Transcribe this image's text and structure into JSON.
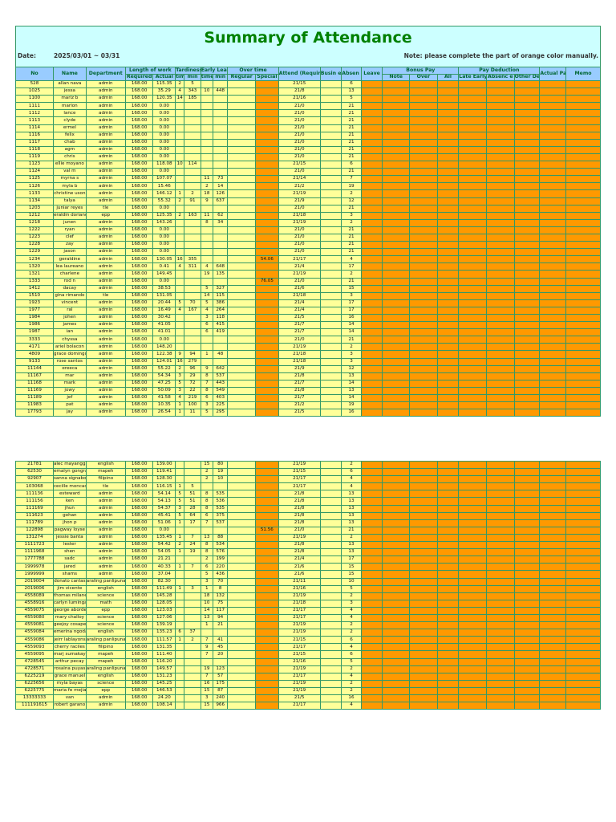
{
  "title": "Summary of Attendance",
  "date_label": "Date:",
  "date_value": "2025/03/01 ~ 03/31",
  "note": "Note: please complete the part of orange color manually.",
  "headers": {
    "no": "No",
    "name": "Name",
    "department": "Department",
    "length_of_work": "Length of work",
    "required": "Required",
    "actual": "Actual",
    "tardiness": "Tardiness",
    "tard_time": "time",
    "tard_min": "min",
    "early_leave": "Early Leave",
    "early_time": "time",
    "early_min": "min",
    "overtime": "Over time",
    "regular": "Regular",
    "special": "Special",
    "attend": "Attend (Required/ Actual)",
    "business_trip": "Busin ess Trip",
    "absence": "Absen ce",
    "leave": "Leave",
    "bonus_pay": "Bonus Pay",
    "bonus_note": "Note",
    "bonus_over": "Over",
    "bonus_all": "All",
    "pay_deduction": "Pay Deduction",
    "late_early": "Late Early Leave",
    "ded_absence": "Absenc e",
    "other_deduction": "Other Deducti on",
    "actual_pay": "Actual Pay",
    "memo": "Memo"
  },
  "table1_rows": [
    [
      "528",
      "allan nava",
      "admin",
      "168.00",
      "115.35",
      "2",
      "5",
      "",
      "",
      "",
      "",
      "21/15",
      "",
      "6"
    ],
    [
      "1025",
      "jessa",
      "admin",
      "168.00",
      "35.29",
      "4",
      "343",
      "10",
      "448",
      "",
      "",
      "21/8",
      "",
      "13"
    ],
    [
      "1100",
      "mariz b",
      "admin",
      "168.00",
      "120.35",
      "14",
      "185",
      "",
      "",
      "",
      "",
      "21/16",
      "",
      "5"
    ],
    [
      "1111",
      "marlon",
      "admin",
      "168.00",
      "0.00",
      "",
      "",
      "",
      "",
      "",
      "",
      "21/0",
      "",
      "21"
    ],
    [
      "1112",
      "lance",
      "admin",
      "168.00",
      "0.00",
      "",
      "",
      "",
      "",
      "",
      "",
      "21/0",
      "",
      "21"
    ],
    [
      "1113",
      "clyde",
      "admin",
      "168.00",
      "0.00",
      "",
      "",
      "",
      "",
      "",
      "",
      "21/0",
      "",
      "21"
    ],
    [
      "1114",
      "ermel",
      "admin",
      "168.00",
      "0.00",
      "",
      "",
      "",
      "",
      "",
      "",
      "21/0",
      "",
      "21"
    ],
    [
      "1116",
      "felix",
      "admin",
      "168.00",
      "0.00",
      "",
      "",
      "",
      "",
      "",
      "",
      "21/0",
      "",
      "21"
    ],
    [
      "1117",
      "chab",
      "admin",
      "168.00",
      "0.00",
      "",
      "",
      "",
      "",
      "",
      "",
      "21/0",
      "",
      "21"
    ],
    [
      "1118",
      "agm",
      "admin",
      "168.00",
      "0.00",
      "",
      "",
      "",
      "",
      "",
      "",
      "21/0",
      "",
      "21"
    ],
    [
      "1119",
      "chris",
      "admin",
      "168.00",
      "0.00",
      "",
      "",
      "",
      "",
      "",
      "",
      "21/0",
      "",
      "21"
    ],
    [
      "1123",
      "ellie moyano",
      "admin",
      "168.00",
      "118.08",
      "10",
      "114",
      "",
      "",
      "",
      "",
      "21/15",
      "",
      "6"
    ],
    [
      "1124",
      "val m",
      "admin",
      "168.00",
      "0.00",
      "",
      "",
      "",
      "",
      "",
      "",
      "21/0",
      "",
      "21"
    ],
    [
      "1125",
      "myrna s",
      "admin",
      "168.00",
      "107.07",
      "",
      "",
      "11",
      "73",
      "",
      "",
      "21/14",
      "",
      "7"
    ],
    [
      "1126",
      "myla b",
      "admin",
      "168.00",
      "15.46",
      "",
      "",
      "2",
      "14",
      "",
      "",
      "21/2",
      "",
      "19"
    ],
    [
      "1133",
      "christine uson",
      "admin",
      "168.00",
      "146.12",
      "1",
      "2",
      "18",
      "126",
      "",
      "",
      "21/19",
      "",
      "2"
    ],
    [
      "1134",
      "talya",
      "admin",
      "168.00",
      "55.32",
      "2",
      "91",
      "9",
      "637",
      "",
      "",
      "21/9",
      "",
      "12"
    ],
    [
      "1203",
      "juniar reyes",
      "tle",
      "168.00",
      "0.00",
      "",
      "",
      "",
      "",
      "",
      "",
      "21/0",
      "",
      "21"
    ],
    [
      "1212",
      "eraldin doriano",
      "epp",
      "168.00",
      "125.35",
      "2",
      "163",
      "11",
      "62",
      "",
      "",
      "21/18",
      "",
      "3"
    ],
    [
      "1218",
      "junen",
      "admin",
      "168.00",
      "143.26",
      "",
      "",
      "8",
      "34",
      "",
      "",
      "21/19",
      "",
      "2"
    ],
    [
      "1222",
      "ryan",
      "admin",
      "168.00",
      "0.00",
      "",
      "",
      "",
      "",
      "",
      "",
      "21/0",
      "",
      "21"
    ],
    [
      "1223",
      "clef",
      "admin",
      "168.00",
      "0.00",
      "",
      "",
      "",
      "",
      "",
      "",
      "21/0",
      "",
      "21"
    ],
    [
      "1228",
      "zay",
      "admin",
      "168.00",
      "0.00",
      "",
      "",
      "",
      "",
      "",
      "",
      "21/0",
      "",
      "21"
    ],
    [
      "1229",
      "jason",
      "admin",
      "168.00",
      "0.00",
      "",
      "",
      "",
      "",
      "",
      "",
      "21/0",
      "",
      "21"
    ],
    [
      "1234",
      "geraldine",
      "admin",
      "168.00",
      "130.05",
      "16",
      "355",
      "",
      "",
      "",
      "54.06",
      "21/17",
      "",
      "4"
    ],
    [
      "1320",
      "lea laureano",
      "admin",
      "168.00",
      "0.41",
      "4",
      "311",
      "4",
      "648",
      "",
      "",
      "21/4",
      "",
      "17"
    ],
    [
      "1321",
      "charlene",
      "admin",
      "168.00",
      "149.45",
      "",
      "",
      "19",
      "135",
      "",
      "",
      "21/19",
      "",
      "2"
    ],
    [
      "1333",
      "rod n",
      "admin",
      "168.00",
      "0.00",
      "",
      "",
      "",
      "",
      "",
      "76.05",
      "21/0",
      "",
      "21"
    ],
    [
      "1412",
      "dacay",
      "admin",
      "168.00",
      "38.53",
      "",
      "",
      "5",
      "327",
      "",
      "",
      "21/6",
      "",
      "15"
    ],
    [
      "1510",
      "gina rimando",
      "tle",
      "168.00",
      "131.05",
      "",
      "",
      "14",
      "115",
      "",
      "",
      "21/18",
      "",
      "3"
    ],
    [
      "1923",
      "vincent",
      "admin",
      "168.00",
      "20.44",
      "5",
      "70",
      "5",
      "386",
      "",
      "",
      "21/4",
      "",
      "17"
    ],
    [
      "1977",
      "ral",
      "admin",
      "168.00",
      "16.49",
      "4",
      "167",
      "4",
      "264",
      "",
      "",
      "21/4",
      "",
      "17"
    ],
    [
      "1984",
      "johen",
      "admin",
      "168.00",
      "30.42",
      "",
      "",
      "3",
      "118",
      "",
      "",
      "21/5",
      "",
      "16"
    ],
    [
      "1986",
      "james",
      "admin",
      "168.00",
      "41.05",
      "",
      "",
      "6",
      "415",
      "",
      "",
      "21/7",
      "",
      "14"
    ],
    [
      "1987",
      "ian",
      "admin",
      "168.00",
      "41.01",
      "",
      "",
      "6",
      "419",
      "",
      "",
      "21/7",
      "",
      "14"
    ],
    [
      "3333",
      "chyssa",
      "admin",
      "168.00",
      "0.00",
      "",
      "",
      "",
      "",
      "",
      "",
      "21/0",
      "",
      "21"
    ],
    [
      "4171",
      "ariel bolacon",
      "admin",
      "168.00",
      "148.20",
      "",
      "",
      "",
      "",
      "",
      "",
      "21/19",
      "",
      "2"
    ],
    [
      "4809",
      "grace domingo",
      "admin",
      "168.00",
      "122.38",
      "9",
      "94",
      "1",
      "48",
      "",
      "",
      "21/18",
      "",
      "3"
    ],
    [
      "9133",
      "rose santos",
      "admin",
      "168.00",
      "124.01",
      "16",
      "279",
      "",
      "",
      "",
      "",
      "21/18",
      "",
      "3"
    ],
    [
      "11144",
      "ereeca",
      "admin",
      "168.00",
      "55.22",
      "2",
      "96",
      "9",
      "642",
      "",
      "",
      "21/9",
      "",
      "12"
    ],
    [
      "11167",
      "mar",
      "admin",
      "168.00",
      "54.34",
      "3",
      "29",
      "8",
      "537",
      "",
      "",
      "21/8",
      "",
      "13"
    ],
    [
      "11168",
      "mark",
      "admin",
      "168.00",
      "47.25",
      "5",
      "72",
      "7",
      "443",
      "",
      "",
      "21/7",
      "",
      "14"
    ],
    [
      "11169",
      "jowy",
      "admin",
      "168.00",
      "50.09",
      "3",
      "22",
      "8",
      "549",
      "",
      "",
      "21/8",
      "",
      "13"
    ],
    [
      "11189",
      "jef",
      "admin",
      "168.00",
      "41.58",
      "4",
      "219",
      "6",
      "403",
      "",
      "",
      "21/7",
      "",
      "14"
    ],
    [
      "11983",
      "pat",
      "admin",
      "168.00",
      "10.35",
      "1",
      "100",
      "3",
      "225",
      "",
      "",
      "21/2",
      "",
      "19"
    ],
    [
      "17793",
      "jay",
      "admin",
      "168.00",
      "26.54",
      "1",
      "11",
      "5",
      "295",
      "",
      "",
      "21/5",
      "",
      "16"
    ]
  ],
  "table2_rows": [
    [
      "21781",
      "alec mayangga",
      "english",
      "168.00",
      "139.00",
      "",
      "",
      "15",
      "80",
      "",
      "",
      "21/19",
      "",
      "2"
    ],
    [
      "62530",
      "emalyn gongra",
      "mapeh",
      "168.00",
      "119.41",
      "",
      "",
      "2",
      "19",
      "",
      "",
      "21/15",
      "",
      "6"
    ],
    [
      "92907",
      "sanna signabo",
      "filipino",
      "168.00",
      "128.30",
      "",
      "",
      "2",
      "10",
      "",
      "",
      "21/17",
      "",
      "4"
    ],
    [
      "103068",
      "cecille moncad",
      "tle",
      "168.00",
      "116.15",
      "1",
      "5",
      "",
      "",
      "",
      "",
      "21/17",
      "",
      "4"
    ],
    [
      "111136",
      "esteward",
      "admin",
      "168.00",
      "54.14",
      "5",
      "51",
      "8",
      "535",
      "",
      "",
      "21/8",
      "",
      "13"
    ],
    [
      "111156",
      "ken",
      "admin",
      "168.00",
      "54.13",
      "5",
      "51",
      "8",
      "536",
      "",
      "",
      "21/8",
      "",
      "13"
    ],
    [
      "111169",
      "jhun",
      "admin",
      "168.00",
      "54.37",
      "3",
      "28",
      "8",
      "535",
      "",
      "",
      "21/8",
      "",
      "13"
    ],
    [
      "111623",
      "gohan",
      "admin",
      "168.00",
      "45.41",
      "5",
      "64",
      "6",
      "375",
      "",
      "",
      "21/8",
      "",
      "13"
    ],
    [
      "111789",
      "jhon p",
      "admin",
      "168.00",
      "51.06",
      "1",
      "17",
      "7",
      "537",
      "",
      "",
      "21/8",
      "",
      "13"
    ],
    [
      "122898",
      "pagway loyse",
      "admin",
      "168.00",
      "0.00",
      "",
      "",
      "",
      "",
      "",
      "51.56",
      "21/0",
      "",
      "21"
    ],
    [
      "131274",
      "jessie banta",
      "admin",
      "168.00",
      "135.45",
      "1",
      "7",
      "13",
      "88",
      "",
      "",
      "21/19",
      "",
      "2"
    ],
    [
      "1111723",
      "lester",
      "admin",
      "168.00",
      "54.42",
      "2",
      "24",
      "8",
      "534",
      "",
      "",
      "21/8",
      "",
      "13"
    ],
    [
      "1111968",
      "shen",
      "admin",
      "168.00",
      "54.05",
      "1",
      "19",
      "8",
      "576",
      "",
      "",
      "21/8",
      "",
      "13"
    ],
    [
      "1777788",
      "sadc",
      "admin",
      "168.00",
      "21.21",
      "",
      "",
      "2",
      "199",
      "",
      "",
      "21/4",
      "",
      "17"
    ],
    [
      "1999978",
      "jared",
      "admin",
      "168.00",
      "40.33",
      "1",
      "7",
      "6",
      "220",
      "",
      "",
      "21/6",
      "",
      "15"
    ],
    [
      "1999999",
      "shams",
      "admin",
      "168.00",
      "37.04",
      "",
      "",
      "5",
      "436",
      "",
      "",
      "21/6",
      "",
      "15"
    ],
    [
      "2019004",
      "donato canlas",
      "araling panlipunan",
      "168.00",
      "82.30",
      "",
      "",
      "3",
      "70",
      "",
      "",
      "21/11",
      "",
      "10"
    ],
    [
      "2019006",
      "jim vicente",
      "english",
      "168.00",
      "111.49",
      "1",
      "3",
      "1",
      "8",
      "",
      "",
      "21/16",
      "",
      "5"
    ],
    [
      "4558089",
      "thomas milane",
      "science",
      "168.00",
      "145.28",
      "",
      "",
      "18",
      "132",
      "",
      "",
      "21/19",
      "",
      "2"
    ],
    [
      "4558916",
      "carlyn luminga",
      "math",
      "168.00",
      "128.05",
      "",
      "",
      "10",
      "75",
      "",
      "",
      "21/18",
      "",
      "3"
    ],
    [
      "4559075",
      "george aborde",
      "epp",
      "168.00",
      "123.03",
      "",
      "",
      "14",
      "117",
      "",
      "",
      "21/17",
      "",
      "4"
    ],
    [
      "4559080",
      "mary challoy",
      "science",
      "168.00",
      "127.06",
      "",
      "",
      "13",
      "94",
      "",
      "",
      "21/17",
      "",
      "4"
    ],
    [
      "4559081",
      "geejoy cosape",
      "science",
      "168.00",
      "139.19",
      "",
      "",
      "1",
      "21",
      "",
      "",
      "21/19",
      "",
      "2"
    ],
    [
      "4559084",
      "emerina ngoda",
      "english",
      "168.00",
      "135.23",
      "6",
      "37",
      "",
      "",
      "",
      "",
      "21/19",
      "",
      "2"
    ],
    [
      "4559086",
      "jeirr lablayons",
      "araling panlipunan",
      "168.00",
      "111.57",
      "1",
      "2",
      "7",
      "41",
      "",
      "",
      "21/15",
      "",
      "6"
    ],
    [
      "4559093",
      "cherry raciles",
      "filipino",
      "168.00",
      "131.35",
      "",
      "",
      "9",
      "45",
      "",
      "",
      "21/17",
      "",
      "4"
    ],
    [
      "4559095",
      "marj sumakay",
      "mapeh",
      "168.00",
      "111.40",
      "",
      "",
      "7",
      "20",
      "",
      "",
      "21/15",
      "",
      "6"
    ],
    [
      "4728545",
      "arthur pecay",
      "mapeh",
      "168.00",
      "116.20",
      "",
      "",
      "",
      "",
      "",
      "",
      "21/16",
      "",
      "5"
    ],
    [
      "4728571",
      "rosaina puyas",
      "araling panlipunan",
      "168.00",
      "149.57",
      "",
      "",
      "19",
      "123",
      "",
      "",
      "21/19",
      "",
      "2"
    ],
    [
      "6225219",
      "grace manuel",
      "english",
      "168.00",
      "131.23",
      "",
      "",
      "7",
      "57",
      "",
      "",
      "21/17",
      "",
      "4"
    ],
    [
      "6225656",
      "myla bayas",
      "science",
      "168.00",
      "145.25",
      "",
      "",
      "16",
      "175",
      "",
      "",
      "21/19",
      "",
      "2"
    ],
    [
      "6225775",
      "maria fe mejia",
      "epp",
      "168.00",
      "146.53",
      "",
      "",
      "15",
      "87",
      "",
      "",
      "21/19",
      "",
      "2"
    ],
    [
      "13333333",
      "van",
      "admin",
      "168.00",
      "24.20",
      "",
      "",
      "3",
      "240",
      "",
      "",
      "21/5",
      "",
      "16"
    ],
    [
      "111191615",
      "robert garano",
      "admin",
      "168.00",
      "108.14",
      "",
      "",
      "15",
      "966",
      "",
      "",
      "21/17",
      "",
      "4"
    ]
  ],
  "colors": {
    "header_bg": "#ccffff",
    "title": "#008000",
    "col_header_bg": "#99ccff",
    "cell_bg": "#ffff99",
    "manual_bg": "#ff9900",
    "border": "#339966"
  }
}
